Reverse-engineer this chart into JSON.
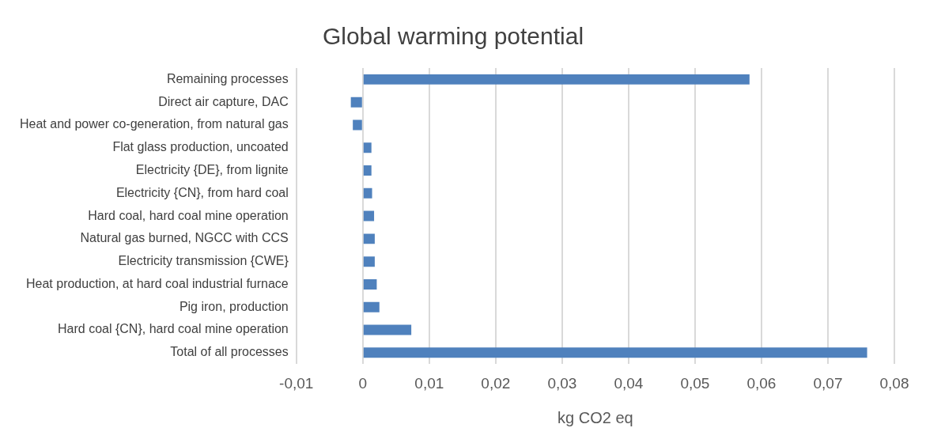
{
  "chart_data": {
    "type": "bar",
    "orientation": "horizontal",
    "title": "Global warming potential",
    "xlabel": "kg CO2 eq",
    "categories": [
      "Remaining processes",
      "Direct air capture, DAC",
      "Heat and power co-generation, from natural gas",
      "Flat glass production, uncoated",
      "Electricity {DE}, from lignite",
      "Electricity {CN}, from hard coal",
      "Hard coal, hard coal mine operation",
      "Natural gas burned, NGCC with CCS",
      "Electricity transmission {CWE}",
      "Heat production, at hard coal industrial furnace",
      "Pig iron, production",
      "Hard coal {CN}, hard coal mine operation",
      "Total of all processes"
    ],
    "values": [
      0.0582,
      -0.0018,
      -0.0015,
      0.0013,
      0.0013,
      0.0014,
      0.0017,
      0.0018,
      0.0018,
      0.0021,
      0.0025,
      0.0073,
      0.0759
    ],
    "color": "#4f81bd",
    "xlim": [
      -0.01,
      0.08
    ],
    "xticks": [
      {
        "value": -0.01,
        "label": "-0,01"
      },
      0,
      {
        "value": 0.01,
        "label": "0,01"
      },
      {
        "value": 0.02,
        "label": "0,02"
      },
      {
        "value": 0.03,
        "label": "0,03"
      },
      {
        "value": 0.04,
        "label": "0,04"
      },
      {
        "value": 0.05,
        "label": "0,05"
      },
      {
        "value": 0.06,
        "label": "0,06"
      },
      {
        "value": 0.07,
        "label": "0,07"
      },
      {
        "value": 0.08,
        "label": "0,08"
      }
    ],
    "grid": "x",
    "legend": false
  }
}
